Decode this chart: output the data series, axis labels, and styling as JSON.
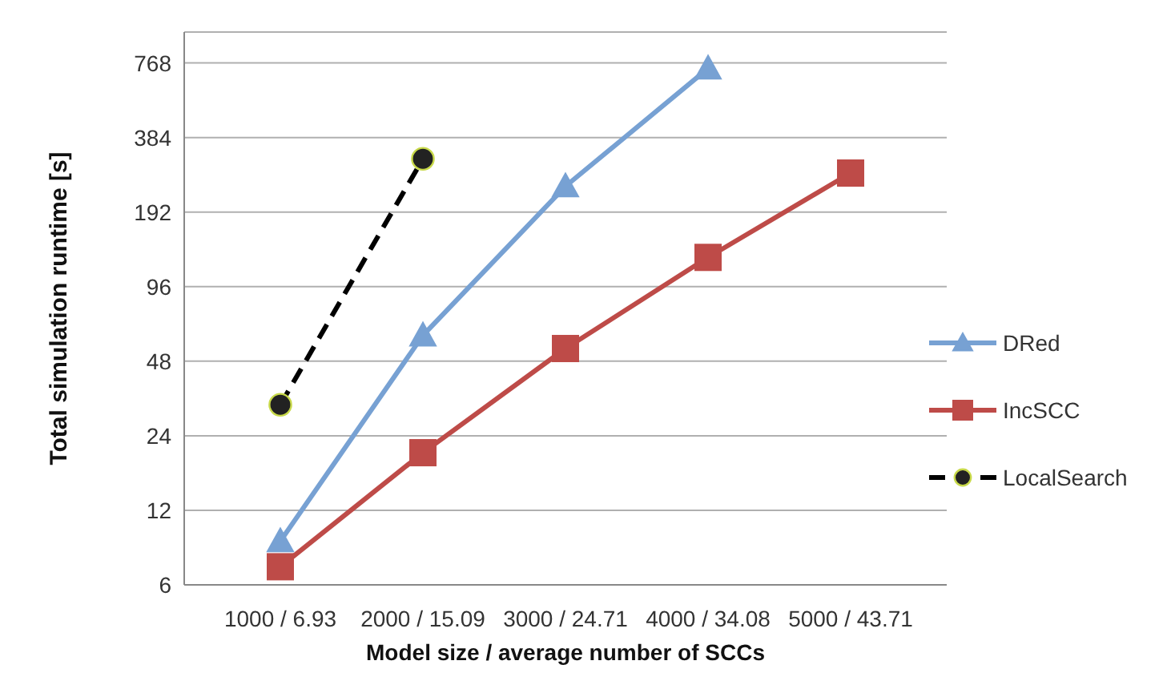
{
  "chart_data": {
    "type": "line",
    "xlabel": "Model size  / average number of SCCs",
    "ylabel": "Total simulation runtime [s]",
    "categories": [
      "1000  / 6.93",
      "2000 / 15.09",
      "3000 / 24.71",
      "4000 / 34.08",
      "5000 / 43.71"
    ],
    "series": [
      {
        "name": "DRed",
        "color": "#77a1d3",
        "marker": "triangle",
        "line_style": "solid",
        "values": [
          9,
          61,
          244,
          730,
          null
        ]
      },
      {
        "name": "IncSCC",
        "color": "#be4b48",
        "marker": "square",
        "line_style": "solid",
        "values": [
          7.1,
          20.5,
          54,
          126,
          276
        ]
      },
      {
        "name": "LocalSearch",
        "color": "#000000",
        "marker": "circle",
        "line_style": "dashed",
        "values": [
          32,
          315,
          null,
          null,
          null
        ]
      }
    ],
    "log": "y",
    "ylim": [
      6,
      1024
    ],
    "yticks": [
      6,
      12,
      24,
      48,
      96,
      192,
      384,
      768
    ],
    "grid": "y",
    "legend": "right"
  }
}
